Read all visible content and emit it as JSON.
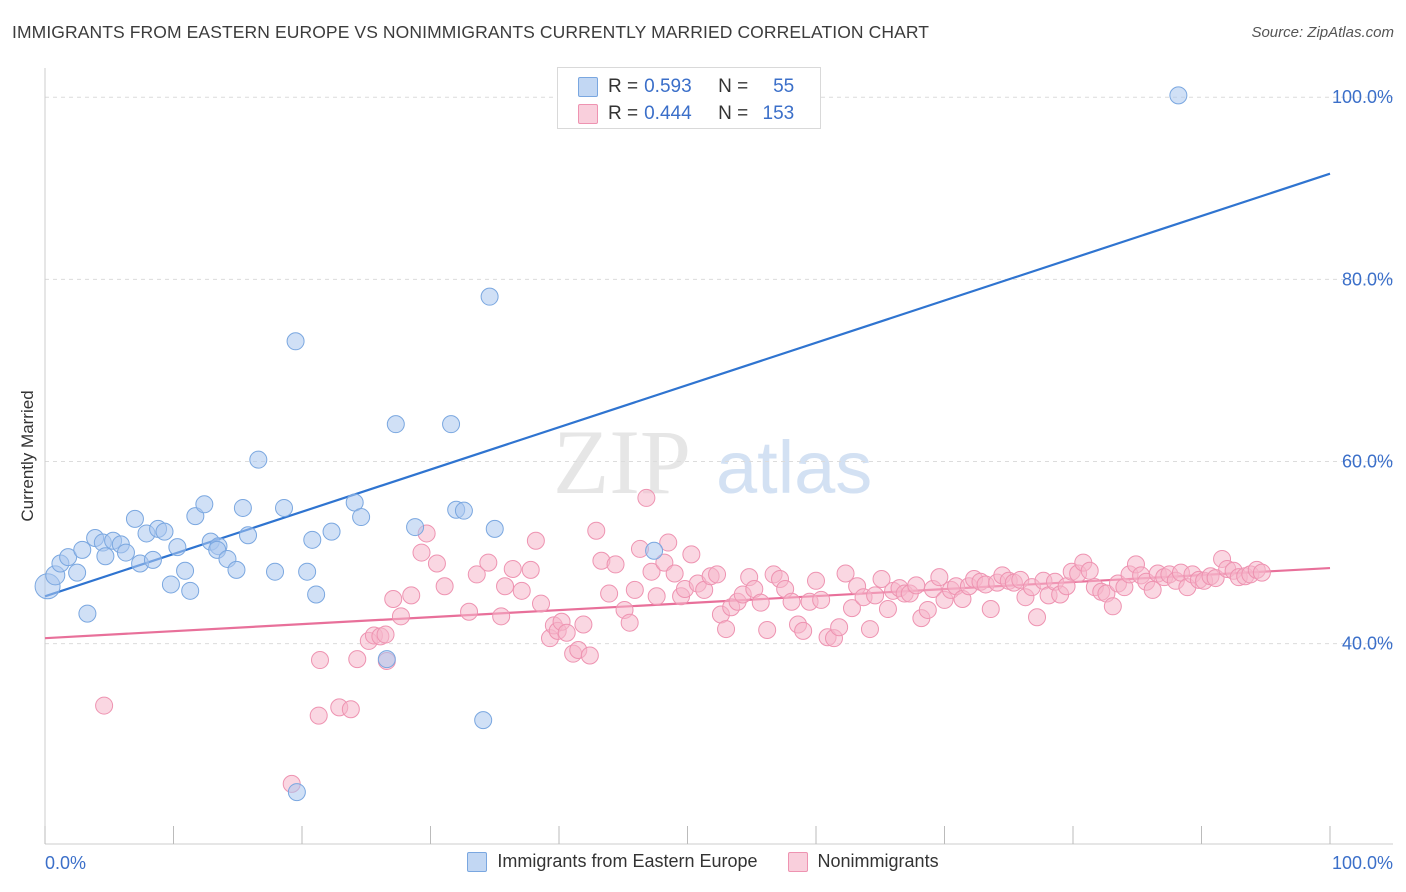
{
  "title": "IMMIGRANTS FROM EASTERN EUROPE VS NONIMMIGRANTS CURRENTLY MARRIED CORRELATION CHART",
  "source": "Source: ZipAtlas.com",
  "watermark": {
    "zip": "ZIP",
    "atlas": "atlas"
  },
  "colors": {
    "blue_fill": "#a9c7ef",
    "blue_stroke": "#7aa7e0",
    "blue_line": "#2f74d0",
    "pink_fill": "#f6b6ca",
    "pink_stroke": "#ee93b1",
    "pink_line": "#e8709a",
    "tick_text": "#3b6fc9",
    "grid": "#dcdcdc"
  },
  "legend_stats": [
    {
      "series": "Immigrants from Eastern Europe",
      "r_label": "R =",
      "r_value": "0.593",
      "n_label": "N =",
      "n_value": "55"
    },
    {
      "series": "Nonimmigrants",
      "r_label": "R =",
      "r_value": "0.444",
      "n_label": "N =",
      "n_value": "153"
    }
  ],
  "chart_data": {
    "type": "scatter",
    "title": "IMMIGRANTS FROM EASTERN EUROPE VS NONIMMIGRANTS CURRENTLY MARRIED CORRELATION CHART",
    "xlabel": "",
    "ylabel": "Currently Married",
    "xlim": [
      0,
      100
    ],
    "ylim": [
      18,
      102
    ],
    "x_tick_labels": [
      "0.0%",
      "100.0%"
    ],
    "y_ticks": [
      40,
      60,
      80,
      100
    ],
    "y_tick_labels": [
      "40.0%",
      "60.0%",
      "80.0%",
      "100.0%"
    ],
    "grid": true,
    "legend_position": "bottom",
    "series": [
      {
        "name": "Immigrants from Eastern Europe",
        "color": "#a9c7ef",
        "trend": {
          "x": [
            0,
            100
          ],
          "y": [
            45.2,
            91.6
          ]
        },
        "points": [
          [
            0.2,
            46.3,
            11
          ],
          [
            0.8,
            47.5,
            8
          ],
          [
            1.2,
            48.8,
            7
          ],
          [
            1.8,
            49.5,
            7
          ],
          [
            2.5,
            47.8,
            7
          ],
          [
            2.9,
            50.3,
            7
          ],
          [
            3.3,
            43.3,
            7
          ],
          [
            3.9,
            51.6,
            7
          ],
          [
            4.5,
            51.1,
            7
          ],
          [
            4.7,
            49.6,
            7
          ],
          [
            5.3,
            51.3,
            7
          ],
          [
            5.9,
            50.9,
            7
          ],
          [
            6.3,
            50.0,
            7
          ],
          [
            7.0,
            53.7,
            7
          ],
          [
            7.4,
            48.8,
            7
          ],
          [
            7.9,
            52.1,
            7
          ],
          [
            8.4,
            49.2,
            7
          ],
          [
            8.8,
            52.6,
            7
          ],
          [
            9.3,
            52.3,
            7
          ],
          [
            9.8,
            46.5,
            7
          ],
          [
            10.3,
            50.6,
            7
          ],
          [
            10.9,
            48.0,
            7
          ],
          [
            11.3,
            45.8,
            7
          ],
          [
            11.7,
            54.0,
            7
          ],
          [
            12.4,
            55.3,
            7
          ],
          [
            12.9,
            51.2,
            7
          ],
          [
            13.5,
            50.7,
            7
          ],
          [
            13.4,
            50.3,
            7
          ],
          [
            14.2,
            49.3,
            7
          ],
          [
            14.9,
            48.1,
            7
          ],
          [
            15.8,
            51.9,
            7
          ],
          [
            15.4,
            54.9,
            7
          ],
          [
            16.6,
            60.2,
            7
          ],
          [
            17.9,
            47.9,
            7
          ],
          [
            18.6,
            54.9,
            7
          ],
          [
            19.5,
            73.2,
            7
          ],
          [
            19.6,
            23.7,
            7
          ],
          [
            20.4,
            47.9,
            7
          ],
          [
            20.8,
            51.4,
            7
          ],
          [
            21.1,
            45.4,
            7
          ],
          [
            22.3,
            52.3,
            7
          ],
          [
            24.1,
            55.5,
            7
          ],
          [
            24.6,
            53.9,
            7
          ],
          [
            26.6,
            38.3,
            7
          ],
          [
            27.3,
            64.1,
            7
          ],
          [
            28.8,
            52.8,
            7
          ],
          [
            31.6,
            64.1,
            7
          ],
          [
            32.0,
            54.7,
            7
          ],
          [
            32.6,
            54.6,
            7
          ],
          [
            34.1,
            31.6,
            7
          ],
          [
            34.6,
            78.1,
            7
          ],
          [
            35.0,
            52.6,
            7
          ],
          [
            47.4,
            50.2,
            7
          ],
          [
            47.0,
            100.2,
            7
          ],
          [
            88.2,
            100.2,
            7
          ]
        ]
      },
      {
        "name": "Nonimmigrants",
        "color": "#f6b6ca",
        "trend": {
          "x": [
            0,
            100
          ],
          "y": [
            40.6,
            48.3
          ]
        },
        "points": [
          [
            4.6,
            33.2
          ],
          [
            21.4,
            38.2
          ],
          [
            21.3,
            32.1
          ],
          [
            22.9,
            33.0
          ],
          [
            23.8,
            32.8
          ],
          [
            24.3,
            38.3
          ],
          [
            25.2,
            40.3
          ],
          [
            25.6,
            40.9
          ],
          [
            26.1,
            40.8
          ],
          [
            26.5,
            41.0
          ],
          [
            26.6,
            38.1
          ],
          [
            27.1,
            44.9
          ],
          [
            27.7,
            43.0
          ],
          [
            28.5,
            45.3
          ],
          [
            29.3,
            50.0
          ],
          [
            29.7,
            52.1
          ],
          [
            30.5,
            48.8
          ],
          [
            31.1,
            46.3
          ],
          [
            19.2,
            24.6
          ],
          [
            33.0,
            43.5
          ],
          [
            33.6,
            47.6
          ],
          [
            34.5,
            48.9
          ],
          [
            35.5,
            43.0
          ],
          [
            35.8,
            46.3
          ],
          [
            36.4,
            48.2
          ],
          [
            37.1,
            45.8
          ],
          [
            37.8,
            48.1
          ],
          [
            38.2,
            51.3
          ],
          [
            38.6,
            44.4
          ],
          [
            39.3,
            40.6
          ],
          [
            39.6,
            42.0
          ],
          [
            39.9,
            41.4
          ],
          [
            40.2,
            42.4
          ],
          [
            40.6,
            41.2
          ],
          [
            41.1,
            38.9
          ],
          [
            41.5,
            39.3
          ],
          [
            41.9,
            42.1
          ],
          [
            42.4,
            38.7
          ],
          [
            42.9,
            52.4
          ],
          [
            43.3,
            49.1
          ],
          [
            43.9,
            45.5
          ],
          [
            44.4,
            48.7
          ],
          [
            45.1,
            43.7
          ],
          [
            45.5,
            42.3
          ],
          [
            45.9,
            45.9
          ],
          [
            46.3,
            50.4
          ],
          [
            46.8,
            56.0
          ],
          [
            47.2,
            47.9
          ],
          [
            47.6,
            45.2
          ],
          [
            48.2,
            48.9
          ],
          [
            48.5,
            51.1
          ],
          [
            49.0,
            47.7
          ],
          [
            49.5,
            45.2
          ],
          [
            49.8,
            46.0
          ],
          [
            50.3,
            49.8
          ],
          [
            50.8,
            46.6
          ],
          [
            51.3,
            45.9
          ],
          [
            51.8,
            47.4
          ],
          [
            52.3,
            47.6
          ],
          [
            52.6,
            43.2
          ],
          [
            53.0,
            41.6
          ],
          [
            53.4,
            44.0
          ],
          [
            53.9,
            44.6
          ],
          [
            54.3,
            45.4
          ],
          [
            54.8,
            47.3
          ],
          [
            55.2,
            46.0
          ],
          [
            55.7,
            44.5
          ],
          [
            56.2,
            41.5
          ],
          [
            56.7,
            47.6
          ],
          [
            57.2,
            47.1
          ],
          [
            57.6,
            46.0
          ],
          [
            58.1,
            44.6
          ],
          [
            58.6,
            42.1
          ],
          [
            59.0,
            41.4
          ],
          [
            59.5,
            44.6
          ],
          [
            60.0,
            46.9
          ],
          [
            60.4,
            44.8
          ],
          [
            60.9,
            40.7
          ],
          [
            61.4,
            40.6
          ],
          [
            61.8,
            41.8
          ],
          [
            62.3,
            47.7
          ],
          [
            62.8,
            43.9
          ],
          [
            63.2,
            46.3
          ],
          [
            63.7,
            45.1
          ],
          [
            64.2,
            41.6
          ],
          [
            64.6,
            45.3
          ],
          [
            65.1,
            47.1
          ],
          [
            65.6,
            43.8
          ],
          [
            66.0,
            45.8
          ],
          [
            66.5,
            46.1
          ],
          [
            66.9,
            45.5
          ],
          [
            67.3,
            45.5
          ],
          [
            67.8,
            46.4
          ],
          [
            68.2,
            42.8
          ],
          [
            68.7,
            43.7
          ],
          [
            69.1,
            46.0
          ],
          [
            69.6,
            47.3
          ],
          [
            70.0,
            44.8
          ],
          [
            70.5,
            45.9
          ],
          [
            70.9,
            46.3
          ],
          [
            71.4,
            44.9
          ],
          [
            71.9,
            46.3
          ],
          [
            72.3,
            47.1
          ],
          [
            72.8,
            46.8
          ],
          [
            73.2,
            46.5
          ],
          [
            73.6,
            43.8
          ],
          [
            74.1,
            46.7
          ],
          [
            74.5,
            47.5
          ],
          [
            75.0,
            46.9
          ],
          [
            75.4,
            46.7
          ],
          [
            75.9,
            47.0
          ],
          [
            76.3,
            45.1
          ],
          [
            76.8,
            46.2
          ],
          [
            77.2,
            42.9
          ],
          [
            77.7,
            46.9
          ],
          [
            78.1,
            45.3
          ],
          [
            78.6,
            46.8
          ],
          [
            79.0,
            45.4
          ],
          [
            79.5,
            46.3
          ],
          [
            79.9,
            47.9
          ],
          [
            80.4,
            47.7
          ],
          [
            80.8,
            48.9
          ],
          [
            81.3,
            48.0
          ],
          [
            81.7,
            46.2
          ],
          [
            82.2,
            45.7
          ],
          [
            82.6,
            45.5
          ],
          [
            83.1,
            44.1
          ],
          [
            83.5,
            46.6
          ],
          [
            84.0,
            46.2
          ],
          [
            84.4,
            47.6
          ],
          [
            84.9,
            48.7
          ],
          [
            85.3,
            47.5
          ],
          [
            85.7,
            46.8
          ],
          [
            86.2,
            45.9
          ],
          [
            86.6,
            47.7
          ],
          [
            87.1,
            47.3
          ],
          [
            87.5,
            47.6
          ],
          [
            88.0,
            46.9
          ],
          [
            88.4,
            47.8
          ],
          [
            88.9,
            46.2
          ],
          [
            89.3,
            47.6
          ],
          [
            89.8,
            47.0
          ],
          [
            90.2,
            46.9
          ],
          [
            90.7,
            47.4
          ],
          [
            91.1,
            47.2
          ],
          [
            91.6,
            49.3
          ],
          [
            92.0,
            48.2
          ],
          [
            92.5,
            48.0
          ],
          [
            92.9,
            47.3
          ],
          [
            93.4,
            47.4
          ],
          [
            93.8,
            47.6
          ],
          [
            94.3,
            48.1
          ],
          [
            94.7,
            47.8
          ]
        ]
      }
    ]
  }
}
